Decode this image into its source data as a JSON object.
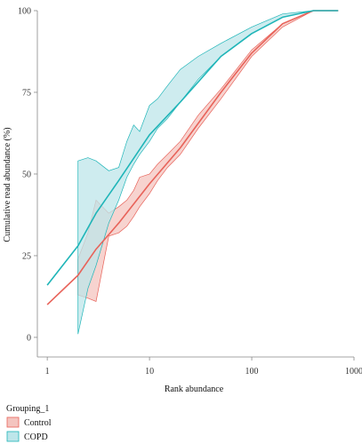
{
  "chart_data": {
    "type": "line",
    "title": "",
    "xlabel": "Rank abundance",
    "ylabel": "Cumulative read abundance (%)",
    "x_scale": "log10",
    "xlim": [
      0.8,
      1000
    ],
    "ylim": [
      -6,
      100
    ],
    "x_ticks": [
      1,
      10,
      100,
      1000
    ],
    "x_tick_labels": [
      "1",
      "10",
      "100",
      "1000"
    ],
    "y_ticks": [
      0,
      25,
      50,
      75,
      100
    ],
    "y_tick_labels": [
      "0",
      "25",
      "50",
      "75",
      "100"
    ],
    "grid": false,
    "legend_position": "bottom-left",
    "legend_title": "Grouping_1",
    "series": [
      {
        "name": "Control",
        "color": "#e8635a",
        "fill": "#f4c4bf",
        "x": [
          1,
          2,
          3,
          5,
          10,
          20,
          50,
          100,
          200,
          400,
          700
        ],
        "y": [
          10,
          19,
          27,
          35,
          47,
          58,
          75,
          87,
          96,
          100,
          100
        ],
        "band_x": [
          2,
          2.5,
          3,
          4,
          5,
          6,
          7,
          8,
          10,
          12,
          15,
          20,
          30,
          50,
          100,
          200,
          400,
          700
        ],
        "band_upper": [
          24,
          32,
          42,
          38,
          40,
          42,
          45,
          49,
          50,
          53,
          56,
          60,
          68,
          76,
          88,
          96,
          100,
          100
        ],
        "band_lower": [
          13,
          12,
          11,
          31,
          32,
          34,
          37,
          40,
          44,
          48,
          52,
          56,
          64,
          73,
          86,
          95,
          100,
          100
        ]
      },
      {
        "name": "COPD",
        "color": "#1fb5b8",
        "fill": "#bde6ea",
        "x": [
          1,
          2,
          3,
          5,
          10,
          20,
          50,
          100,
          200,
          400,
          700
        ],
        "y": [
          16,
          28,
          38,
          48,
          62,
          72,
          86,
          93,
          98,
          100,
          100
        ],
        "band_x": [
          2,
          2.5,
          3,
          4,
          5,
          6,
          7,
          8,
          10,
          12,
          15,
          20,
          30,
          50,
          100,
          200,
          400,
          700
        ],
        "band_upper": [
          54,
          55,
          54,
          51,
          52,
          60,
          65,
          63,
          71,
          73,
          77,
          82,
          86,
          90,
          95,
          99,
          100,
          100
        ],
        "band_lower": [
          1,
          15,
          22,
          35,
          42,
          49,
          53,
          56,
          60,
          64,
          67,
          72,
          79,
          86,
          93,
          98,
          100,
          100
        ]
      }
    ]
  }
}
